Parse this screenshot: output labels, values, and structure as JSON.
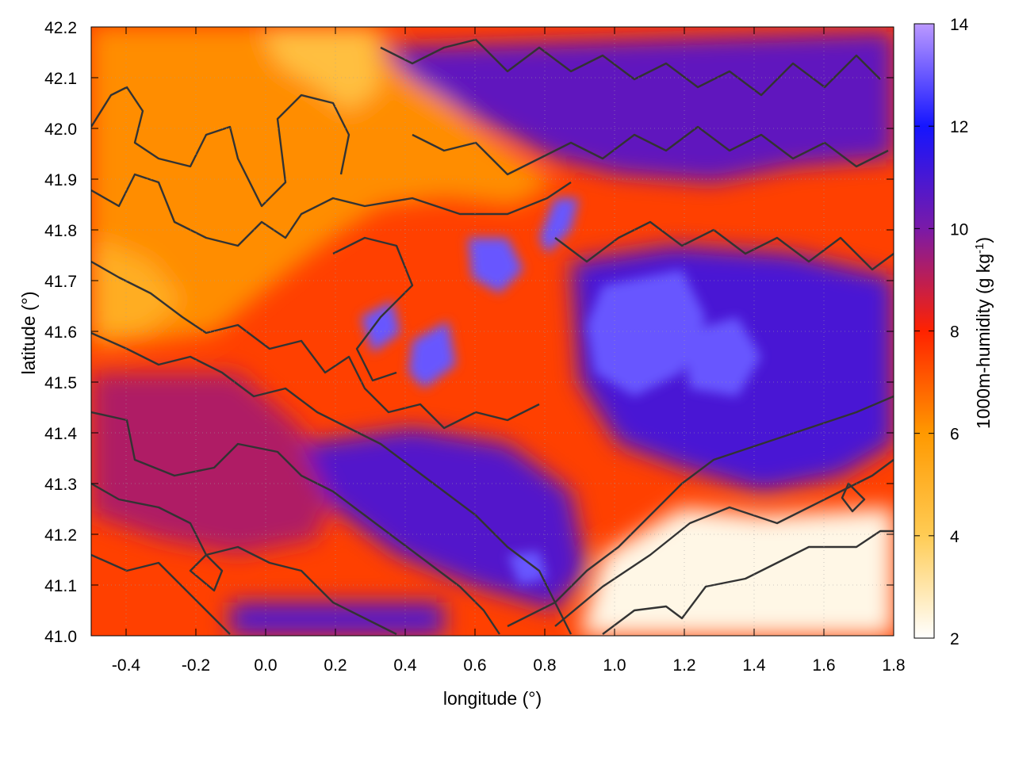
{
  "chart_data": {
    "type": "heatmap",
    "title": "",
    "xlabel": "longitude (°)",
    "ylabel": "latitude (°)",
    "colorbar_label": "1000m-humidity (g kg",
    "colorbar_label_sup": "-1",
    "colorbar_label_end": ")",
    "xlim": [
      -0.5,
      1.8
    ],
    "ylim": [
      41.0,
      42.2
    ],
    "zlim": [
      2,
      14
    ],
    "x_ticks": [
      "-0.4",
      "-0.2",
      "0.0",
      "0.2",
      "0.4",
      "0.6",
      "0.8",
      "1.0",
      "1.2",
      "1.4",
      "1.6",
      "1.8"
    ],
    "x_tick_values": [
      -0.4,
      -0.2,
      0.0,
      0.2,
      0.4,
      0.6,
      0.8,
      1.0,
      1.2,
      1.4,
      1.6,
      1.8
    ],
    "y_ticks": [
      "41.0",
      "41.1",
      "41.2",
      "41.3",
      "41.4",
      "41.5",
      "41.6",
      "41.7",
      "41.8",
      "41.9",
      "42.0",
      "42.1",
      "42.2"
    ],
    "y_tick_values": [
      41.0,
      41.1,
      41.2,
      41.3,
      41.4,
      41.5,
      41.6,
      41.7,
      41.8,
      41.9,
      42.0,
      42.1,
      42.2
    ],
    "colorbar_ticks": [
      "2",
      "4",
      "6",
      "8",
      "10",
      "12",
      "14"
    ],
    "colorbar_tick_values": [
      2,
      4,
      6,
      8,
      10,
      12,
      14
    ],
    "colormap": [
      {
        "v": 2,
        "color": "#ffffff"
      },
      {
        "v": 4,
        "color": "#ffcc55"
      },
      {
        "v": 6,
        "color": "#ff9900"
      },
      {
        "v": 8,
        "color": "#ff2200"
      },
      {
        "v": 10,
        "color": "#7a1aa8"
      },
      {
        "v": 12,
        "color": "#1515ff"
      },
      {
        "v": 14,
        "color": "#bb99ff"
      }
    ],
    "grid": true,
    "contour_color": "#333333",
    "regions": [
      {
        "name": "base",
        "value": 7.5
      },
      {
        "name": "northwest-orange",
        "value": 6.2
      },
      {
        "name": "northeast-moist",
        "value": 10.5
      },
      {
        "name": "central-east-moist",
        "value": 11.0
      },
      {
        "name": "central-maxima",
        "value": 13.0
      },
      {
        "name": "southwest-purple",
        "value": 9.2
      },
      {
        "name": "south-blue",
        "value": 10.8
      },
      {
        "name": "southeast-dry",
        "value": 2.3
      },
      {
        "name": "north-dry",
        "value": 4.5
      },
      {
        "name": "west-dry",
        "value": 5.2
      }
    ]
  }
}
